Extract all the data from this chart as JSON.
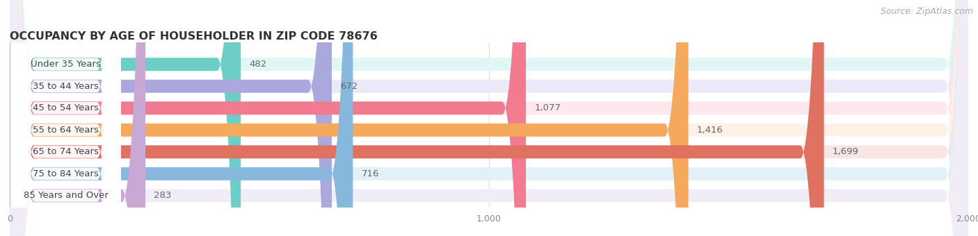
{
  "title": "OCCUPANCY BY AGE OF HOUSEHOLDER IN ZIP CODE 78676",
  "source": "Source: ZipAtlas.com",
  "categories": [
    "Under 35 Years",
    "35 to 44 Years",
    "45 to 54 Years",
    "55 to 64 Years",
    "65 to 74 Years",
    "75 to 84 Years",
    "85 Years and Over"
  ],
  "values": [
    482,
    672,
    1077,
    1416,
    1699,
    716,
    283
  ],
  "bar_colors": [
    "#6dcdc7",
    "#aaa8dc",
    "#f27b92",
    "#f5a95c",
    "#e07060",
    "#88b8dc",
    "#c9a8d4"
  ],
  "bar_bg_colors": [
    "#e0f7f6",
    "#eceaf8",
    "#fce8ed",
    "#fef2e6",
    "#f8e6e4",
    "#e2f0f8",
    "#f2ecf6"
  ],
  "xlim": [
    0,
    2000
  ],
  "xticks": [
    0,
    1000,
    2000
  ],
  "background_color": "#ffffff",
  "title_fontsize": 11.5,
  "title_color": "#333333",
  "label_fontsize": 9.5,
  "value_fontsize": 9.5,
  "source_fontsize": 9,
  "source_color": "#aaaaaa",
  "bar_height": 0.72
}
